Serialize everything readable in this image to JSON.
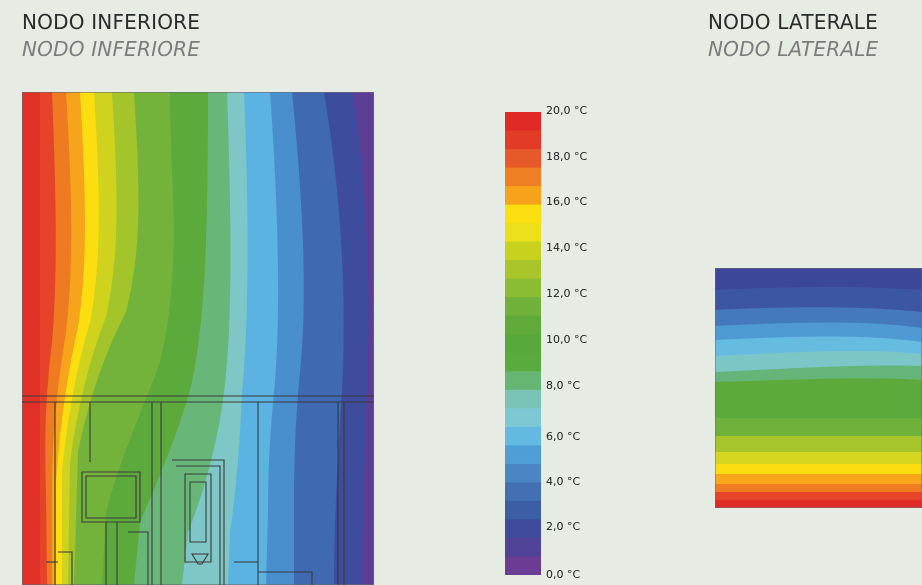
{
  "left_panel": {
    "title": "NODO INFERIORE",
    "subtitle": "NODO INFERIORE"
  },
  "right_panel": {
    "title": "NODO LATERALE",
    "subtitle": "NODO LATERALE"
  },
  "legend": {
    "unit": "°C",
    "range": [
      0,
      20
    ],
    "ticks": [
      "20,0 °C",
      "18,0 °C",
      "16,0 °C",
      "14,0 °C",
      "12,0 °C",
      "10,0 °C",
      "8,0 °C",
      "6,0 °C",
      "4,0 °C",
      "2,0 °C",
      "0,0 °C"
    ],
    "bands_top_to_bottom": [
      "#e02a26",
      "#e23c27",
      "#e55a28",
      "#ee7f22",
      "#f6a21a",
      "#fcdf10",
      "#ece01a",
      "#c7d21f",
      "#a8c62a",
      "#8bbd34",
      "#70b13a",
      "#5faa38",
      "#58a93a",
      "#5aab3d",
      "#66b572",
      "#79c4b4",
      "#7dc9d3",
      "#62b9e2",
      "#4f9fd6",
      "#4a86c4",
      "#4270b2",
      "#3b5ea4",
      "#3e4a9b",
      "#504296",
      "#6a3c93"
    ]
  }
}
